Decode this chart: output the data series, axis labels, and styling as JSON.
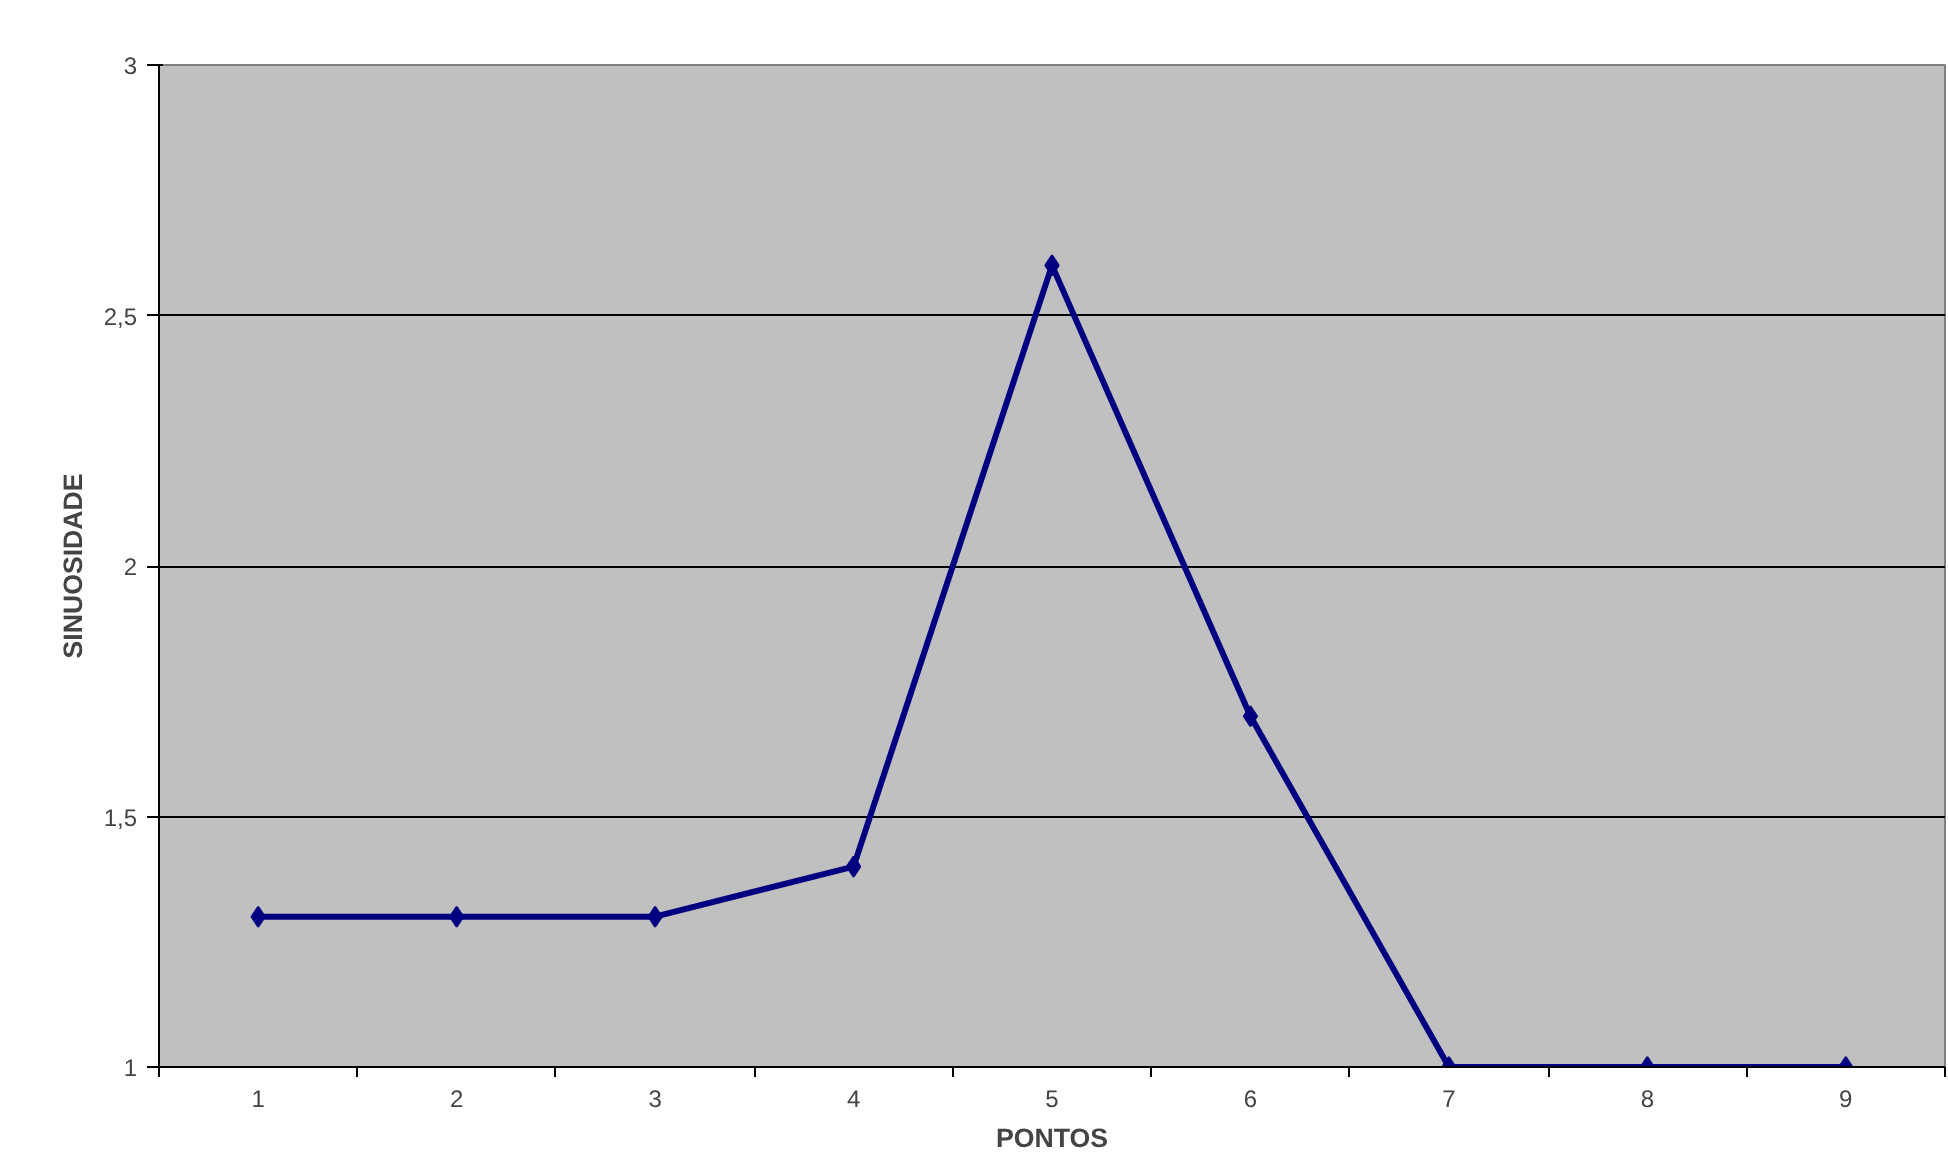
{
  "chart_data": {
    "type": "line",
    "xlabel": "PONTOS",
    "ylabel": "SINUOSIDADE",
    "categories": [
      "1",
      "2",
      "3",
      "4",
      "5",
      "6",
      "7",
      "8",
      "9"
    ],
    "series": [
      {
        "color": "#000080",
        "values": [
          1.3,
          1.3,
          1.3,
          1.4,
          2.6,
          1.7,
          1,
          1,
          1
        ]
      }
    ],
    "ylim": [
      1,
      3
    ],
    "yticks": [
      1,
      {
        "value": 1.5,
        "label": "1,5"
      },
      2,
      {
        "value": 2.5,
        "label": "2,5"
      },
      3
    ],
    "grid": "y",
    "marker": "diamond",
    "line_style": "solid"
  }
}
